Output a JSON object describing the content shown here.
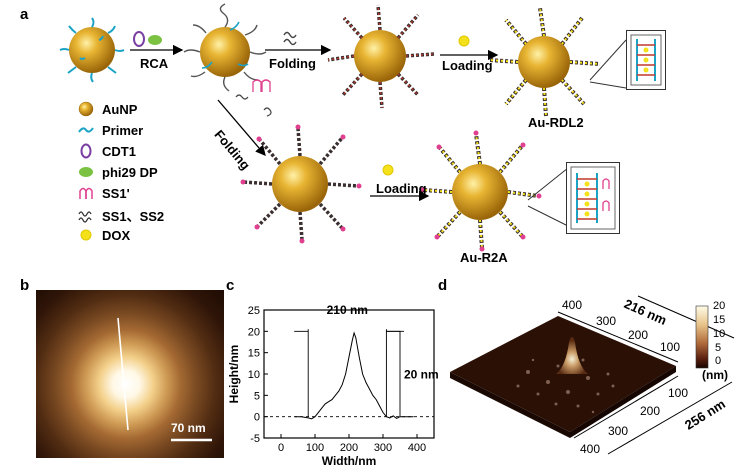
{
  "panels": {
    "a": "a",
    "b": "b",
    "c": "c",
    "d": "d"
  },
  "scheme": {
    "rca": "RCA",
    "folding_top": "Folding",
    "loading_top": "Loading",
    "product_top": "Au-RDL2",
    "folding_diag": "Folding",
    "loading_bottom": "Loading",
    "product_bottom": "Au-R2A"
  },
  "legend": [
    {
      "label": "AuNP",
      "icon": "gold-sphere-icon"
    },
    {
      "label": "Primer",
      "icon": "primer-strand-icon"
    },
    {
      "label": "CDT1",
      "icon": "circular-template-icon"
    },
    {
      "label": "phi29 DP",
      "icon": "polymerase-icon"
    },
    {
      "label": "SS1'",
      "icon": "hairpin-strand-icon"
    },
    {
      "label": "SS1、SS2",
      "icon": "wavy-strands-icon"
    },
    {
      "label": "DOX",
      "icon": "drug-molecule-icon"
    }
  ],
  "afm": {
    "scale_label": "70 nm"
  },
  "chart_data": {
    "type": "line",
    "xlabel": "Width/nm",
    "ylabel": "Height/nm",
    "xlim": [
      -50,
      450
    ],
    "ylim": [
      -5,
      25
    ],
    "xticks": [
      0,
      100,
      200,
      300,
      400
    ],
    "yticks": [
      -5,
      0,
      5,
      10,
      15,
      20,
      25
    ],
    "series": [
      {
        "values": [
          [
            40,
            0
          ],
          [
            60,
            0
          ],
          [
            80,
            -0.3
          ],
          [
            90,
            -0.5
          ],
          [
            100,
            0
          ],
          [
            110,
            1
          ],
          [
            120,
            2
          ],
          [
            130,
            3
          ],
          [
            140,
            3.5
          ],
          [
            150,
            4
          ],
          [
            160,
            5
          ],
          [
            170,
            6
          ],
          [
            180,
            7.5
          ],
          [
            190,
            10
          ],
          [
            200,
            14
          ],
          [
            210,
            18
          ],
          [
            215,
            19.6
          ],
          [
            220,
            18.5
          ],
          [
            230,
            14
          ],
          [
            240,
            10
          ],
          [
            250,
            8
          ],
          [
            260,
            6.5
          ],
          [
            270,
            5
          ],
          [
            280,
            4
          ],
          [
            290,
            2.5
          ],
          [
            300,
            1
          ],
          [
            310,
            0
          ],
          [
            320,
            -0.3
          ],
          [
            330,
            0.2
          ],
          [
            340,
            -0.4
          ],
          [
            350,
            0
          ],
          [
            370,
            0
          ],
          [
            390,
            0
          ]
        ]
      }
    ],
    "baseline": 0,
    "annotations": {
      "width": "210 nm",
      "height": "20 nm"
    }
  },
  "surface3d": {
    "axis_top_label": "216 nm",
    "axis_front_label": "256 nm",
    "ticks_top": [
      "400",
      "300",
      "200",
      "100"
    ],
    "ticks_front": [
      "100",
      "200",
      "300",
      "400"
    ],
    "colorbar_ticks": [
      "20",
      "15",
      "10",
      "5",
      "0"
    ],
    "colorbar_unit": "(nm)"
  },
  "colors": {
    "gold": "#d49a1a",
    "primer": "#1ba3c6",
    "strand_dark": "#3a2e2e",
    "strand_red": "#c0392b",
    "dox": "#f5e11a",
    "pink": "#e0408f"
  }
}
